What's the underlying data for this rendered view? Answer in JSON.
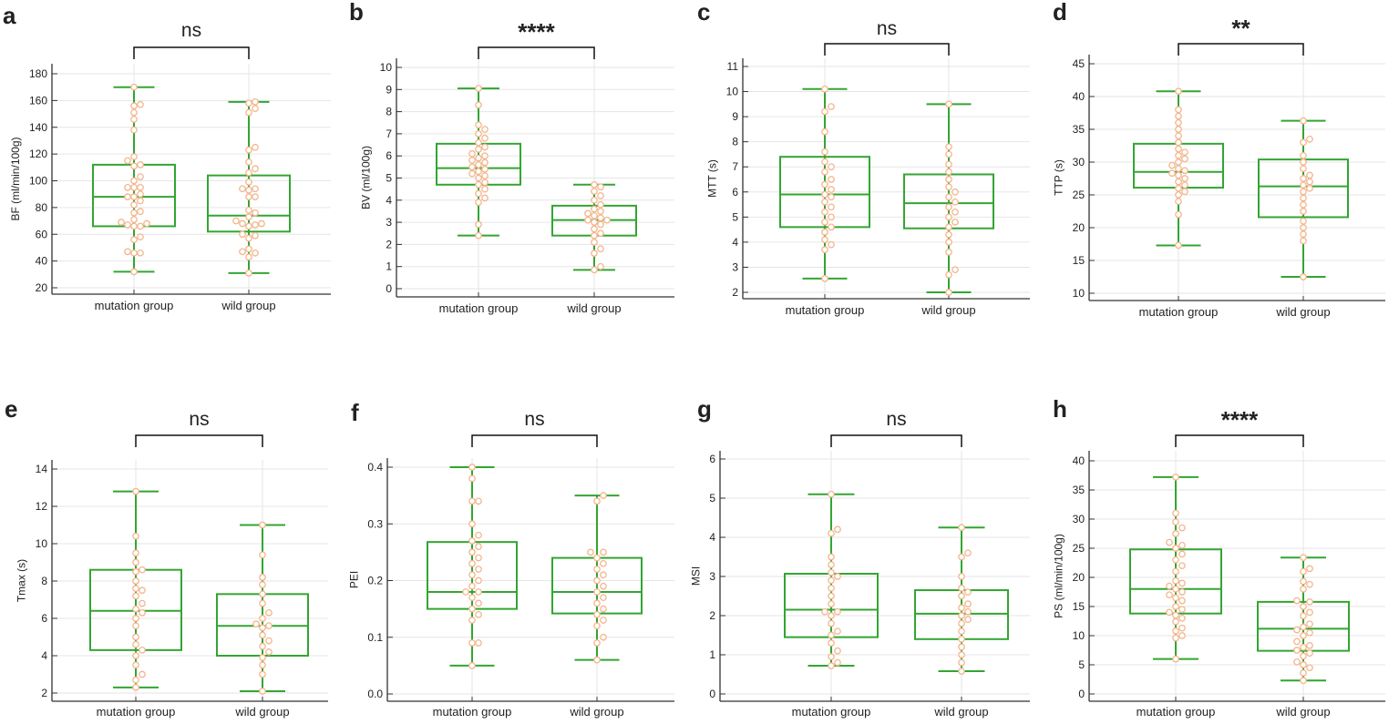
{
  "colors": {
    "box": "#33a532",
    "point": "#f2b68c",
    "grid": "#e6e6e6",
    "axis": "#333333"
  },
  "chart_data": [
    {
      "type": "box",
      "panel": "a",
      "ylabel": "BF (ml/min/100g)",
      "categories": [
        "mutation group",
        "wild group"
      ],
      "significance": "ns",
      "yticks": [
        "20",
        "40",
        "60",
        "80",
        "100",
        "120",
        "140",
        "160",
        "180"
      ],
      "ylim": [
        20,
        180
      ],
      "boxes": [
        {
          "whisker_low": 32,
          "q1": 66,
          "median": 88,
          "q3": 112,
          "whisker_high": 170
        },
        {
          "whisker_low": 31,
          "q1": 62,
          "median": 74,
          "q3": 104,
          "whisker_high": 159
        }
      ],
      "points": [
        [
          32,
          46,
          46,
          47,
          56,
          58,
          66,
          66,
          67,
          68,
          69,
          71,
          76,
          77,
          82,
          85,
          88,
          88,
          90,
          95,
          95,
          95,
          100,
          103,
          111,
          112,
          115,
          118,
          138,
          146,
          151,
          156,
          157,
          170
        ],
        [
          31,
          43,
          46,
          47,
          49,
          57,
          59,
          60,
          66,
          67,
          68,
          68,
          70,
          73,
          76,
          78,
          88,
          88,
          93,
          94,
          94,
          99,
          106,
          109,
          114,
          123,
          125,
          151,
          154,
          158,
          159
        ]
      ]
    },
    {
      "type": "box",
      "panel": "b",
      "ylabel": "BV (ml/100g)",
      "categories": [
        "mutation group",
        "wild group"
      ],
      "significance": "****",
      "yticks": [
        "0",
        "1",
        "2",
        "3",
        "4",
        "5",
        "6",
        "7",
        "8",
        "9",
        "10"
      ],
      "ylim": [
        0,
        10
      ],
      "boxes": [
        {
          "whisker_low": 2.4,
          "q1": 4.7,
          "median": 5.45,
          "q3": 6.55,
          "whisker_high": 9.05
        },
        {
          "whisker_low": 0.85,
          "q1": 2.4,
          "median": 3.1,
          "q3": 3.75,
          "whisker_high": 4.7
        }
      ],
      "points": [
        [
          2.4,
          2.9,
          3.9,
          4.1,
          4.3,
          4.5,
          4.7,
          4.8,
          5.0,
          5.1,
          5.2,
          5.3,
          5.4,
          5.5,
          5.6,
          5.7,
          5.8,
          5.9,
          6.0,
          6.1,
          6.3,
          6.4,
          6.6,
          6.8,
          7.0,
          7.2,
          7.4,
          8.3,
          9.05
        ],
        [
          0.85,
          1.0,
          1.6,
          1.8,
          2.1,
          2.4,
          2.5,
          2.7,
          2.9,
          3.0,
          3.1,
          3.1,
          3.2,
          3.3,
          3.4,
          3.5,
          3.6,
          3.8,
          4.0,
          4.2,
          4.4,
          4.6,
          4.7
        ]
      ]
    },
    {
      "type": "box",
      "panel": "c",
      "ylabel": "MTT (s)",
      "categories": [
        "mutation group",
        "wild group"
      ],
      "significance": "ns",
      "yticks": [
        "2",
        "3",
        "4",
        "5",
        "6",
        "7",
        "8",
        "9",
        "10",
        "11"
      ],
      "ylim": [
        2,
        11
      ],
      "boxes": [
        {
          "whisker_low": 2.55,
          "q1": 4.6,
          "median": 5.9,
          "q3": 7.4,
          "whisker_high": 10.1
        },
        {
          "whisker_low": 2.0,
          "q1": 4.55,
          "median": 5.55,
          "q3": 6.7,
          "whisker_high": 9.5
        }
      ],
      "points": [
        [
          2.55,
          3.7,
          3.9,
          4.1,
          4.4,
          4.6,
          4.8,
          5.0,
          5.2,
          5.4,
          5.6,
          5.8,
          5.9,
          6.1,
          6.3,
          6.5,
          6.8,
          7.0,
          7.2,
          7.6,
          8.4,
          9.2,
          9.4,
          10.1
        ],
        [
          2.0,
          2.7,
          2.9,
          3.6,
          4.0,
          4.3,
          4.6,
          4.8,
          5.0,
          5.2,
          5.4,
          5.6,
          5.8,
          6.0,
          6.2,
          6.5,
          6.8,
          7.1,
          7.5,
          7.8,
          9.5
        ]
      ]
    },
    {
      "type": "box",
      "panel": "d",
      "ylabel": "TTP (s)",
      "categories": [
        "mutation group",
        "wild group"
      ],
      "significance": "**",
      "yticks": [
        "10",
        "15",
        "20",
        "25",
        "30",
        "35",
        "40",
        "45"
      ],
      "ylim": [
        10,
        45
      ],
      "boxes": [
        {
          "whisker_low": 17.3,
          "q1": 26.1,
          "median": 28.5,
          "q3": 32.8,
          "whisker_high": 40.8
        },
        {
          "whisker_low": 12.5,
          "q1": 21.6,
          "median": 26.3,
          "q3": 30.4,
          "whisker_high": 36.3
        }
      ],
      "points": [
        [
          17.3,
          22,
          24,
          25,
          25.5,
          26,
          26.5,
          27,
          27.5,
          28,
          28.3,
          28.7,
          29,
          29.5,
          30,
          30.5,
          31,
          31.5,
          32,
          33,
          34,
          35,
          36,
          37,
          38,
          40.8
        ],
        [
          12.5,
          18,
          19,
          20,
          21,
          22.5,
          23.5,
          24.5,
          25.5,
          26,
          26.5,
          27,
          27.5,
          28,
          29,
          30,
          31,
          33,
          33.5,
          36.3
        ]
      ]
    },
    {
      "type": "box",
      "panel": "e",
      "ylabel": "Tmax (s)",
      "categories": [
        "mutation group",
        "wild group"
      ],
      "significance": "ns",
      "yticks": [
        "2",
        "4",
        "6",
        "8",
        "10",
        "12",
        "14"
      ],
      "ylim": [
        2,
        14
      ],
      "boxes": [
        {
          "whisker_low": 2.3,
          "q1": 4.3,
          "median": 6.4,
          "q3": 8.6,
          "whisker_high": 12.8
        },
        {
          "whisker_low": 2.1,
          "q1": 4.0,
          "median": 5.6,
          "q3": 7.3,
          "whisker_high": 11.0
        }
      ],
      "points": [
        [
          2.3,
          2.7,
          3.0,
          3.5,
          4.0,
          4.3,
          4.6,
          5.0,
          5.6,
          6.0,
          6.3,
          6.5,
          6.8,
          7.2,
          7.5,
          7.6,
          8.0,
          8.5,
          8.6,
          9.0,
          9.5,
          10.4,
          12.8
        ],
        [
          2.1,
          3.0,
          3.5,
          3.9,
          4.2,
          4.5,
          4.8,
          5.1,
          5.5,
          5.6,
          5.7,
          6.0,
          6.3,
          6.8,
          7.3,
          7.8,
          8.2,
          9.4,
          11.0
        ]
      ]
    },
    {
      "type": "box",
      "panel": "f",
      "ylabel": "PEI",
      "categories": [
        "mutation group",
        "wild group"
      ],
      "significance": "ns",
      "yticks": [
        "0.0",
        "0.1",
        "0.2",
        "0.3",
        "0.4"
      ],
      "ylim": [
        0,
        0.4
      ],
      "boxes": [
        {
          "whisker_low": 0.05,
          "q1": 0.15,
          "median": 0.18,
          "q3": 0.268,
          "whisker_high": 0.4
        },
        {
          "whisker_low": 0.06,
          "q1": 0.142,
          "median": 0.18,
          "q3": 0.24,
          "whisker_high": 0.35
        }
      ],
      "points": [
        [
          0.05,
          0.09,
          0.09,
          0.13,
          0.14,
          0.15,
          0.16,
          0.17,
          0.18,
          0.18,
          0.19,
          0.2,
          0.21,
          0.22,
          0.23,
          0.24,
          0.25,
          0.26,
          0.27,
          0.28,
          0.3,
          0.34,
          0.34,
          0.38,
          0.4
        ],
        [
          0.06,
          0.09,
          0.1,
          0.12,
          0.13,
          0.14,
          0.15,
          0.16,
          0.17,
          0.18,
          0.19,
          0.2,
          0.21,
          0.22,
          0.23,
          0.24,
          0.25,
          0.25,
          0.34,
          0.35
        ]
      ]
    },
    {
      "type": "box",
      "panel": "g",
      "ylabel": "MSI",
      "categories": [
        "mutation group",
        "wild group"
      ],
      "significance": "ns",
      "yticks": [
        "0",
        "1",
        "2",
        "3",
        "4",
        "5",
        "6"
      ],
      "ylim": [
        0,
        6
      ],
      "boxes": [
        {
          "whisker_low": 0.72,
          "q1": 1.45,
          "median": 2.15,
          "q3": 3.07,
          "whisker_high": 5.1
        },
        {
          "whisker_low": 0.58,
          "q1": 1.4,
          "median": 2.05,
          "q3": 2.65,
          "whisker_high": 4.25
        }
      ],
      "points": [
        [
          0.72,
          0.8,
          0.95,
          1.1,
          1.3,
          1.5,
          1.6,
          1.8,
          2.0,
          2.1,
          2.1,
          2.3,
          2.5,
          2.7,
          2.9,
          3.0,
          3.1,
          3.3,
          3.5,
          4.1,
          4.2,
          5.1
        ],
        [
          0.58,
          0.8,
          1.0,
          1.2,
          1.4,
          1.6,
          1.8,
          1.9,
          2.0,
          2.1,
          2.2,
          2.3,
          2.5,
          2.6,
          2.7,
          3.0,
          3.5,
          3.6,
          4.25
        ]
      ]
    },
    {
      "type": "box",
      "panel": "h",
      "ylabel": "PS (ml/min/100g)",
      "categories": [
        "mutation group",
        "wild group"
      ],
      "significance": "****",
      "yticks": [
        "0",
        "5",
        "10",
        "15",
        "20",
        "25",
        "30",
        "35",
        "40"
      ],
      "ylim": [
        0,
        40
      ],
      "boxes": [
        {
          "whisker_low": 6,
          "q1": 13.8,
          "median": 18,
          "q3": 24.8,
          "whisker_high": 37.2
        },
        {
          "whisker_low": 2.3,
          "q1": 7.4,
          "median": 11.2,
          "q3": 15.8,
          "whisker_high": 23.4
        }
      ],
      "points": [
        [
          6,
          9.6,
          10,
          10.8,
          11.3,
          12.4,
          13,
          13.5,
          14,
          14.5,
          15,
          16,
          16.5,
          17,
          17.5,
          18,
          18.5,
          19,
          19.4,
          21,
          22,
          23,
          24,
          25,
          25.5,
          26,
          27.5,
          28.5,
          29.5,
          31,
          37.2
        ],
        [
          2.3,
          3.6,
          4.5,
          5,
          5.5,
          6.5,
          7,
          7.5,
          8,
          8.3,
          9,
          10,
          10.5,
          11,
          11.5,
          12,
          13.4,
          14,
          15,
          15.8,
          16,
          18,
          18.8,
          19.3,
          21,
          21.5,
          23.4
        ]
      ]
    }
  ]
}
